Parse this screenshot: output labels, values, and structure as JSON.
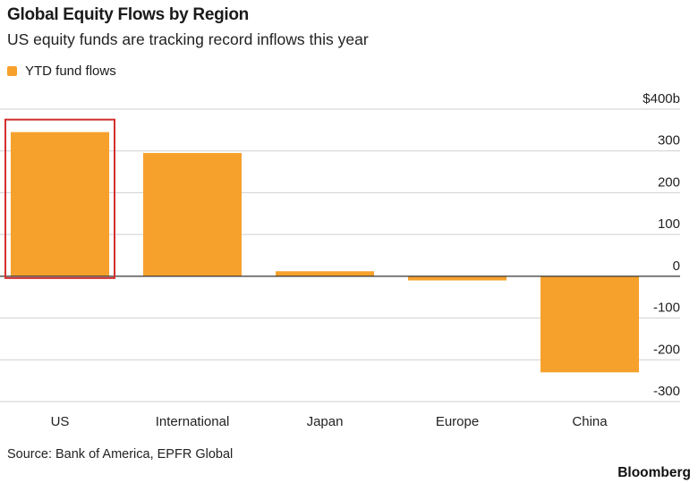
{
  "header": {
    "title": "Global Equity Flows by Region",
    "subtitle": "US equity funds are tracking record inflows this year"
  },
  "legend": {
    "label": "YTD fund flows"
  },
  "footer": {
    "source": "Source: Bank of America, EPFR Global",
    "brand": "Bloomberg"
  },
  "colors": {
    "bar": "#f7a12d",
    "highlight": "#d32f2f",
    "grid": "#cfcfcf",
    "axis": "#333333"
  },
  "chart_data": {
    "type": "bar",
    "title": "Global Equity Flows by Region",
    "subtitle": "US equity funds are tracking record inflows this year",
    "categories": [
      "US",
      "International",
      "Japan",
      "Europe",
      "China"
    ],
    "series": [
      {
        "name": "YTD fund flows",
        "values": [
          345,
          295,
          12,
          -10,
          -230
        ]
      }
    ],
    "ylim": [
      -300,
      400
    ],
    "yticks": [
      400,
      300,
      200,
      100,
      0,
      -100,
      -200,
      -300
    ],
    "ytick_labels": [
      "$400b",
      "300",
      "200",
      "100",
      "0",
      "-100",
      "-200",
      "-300"
    ],
    "highlighted_category": "US",
    "grid": true,
    "legend_position": "top-left",
    "xlabel": "",
    "ylabel": ""
  }
}
